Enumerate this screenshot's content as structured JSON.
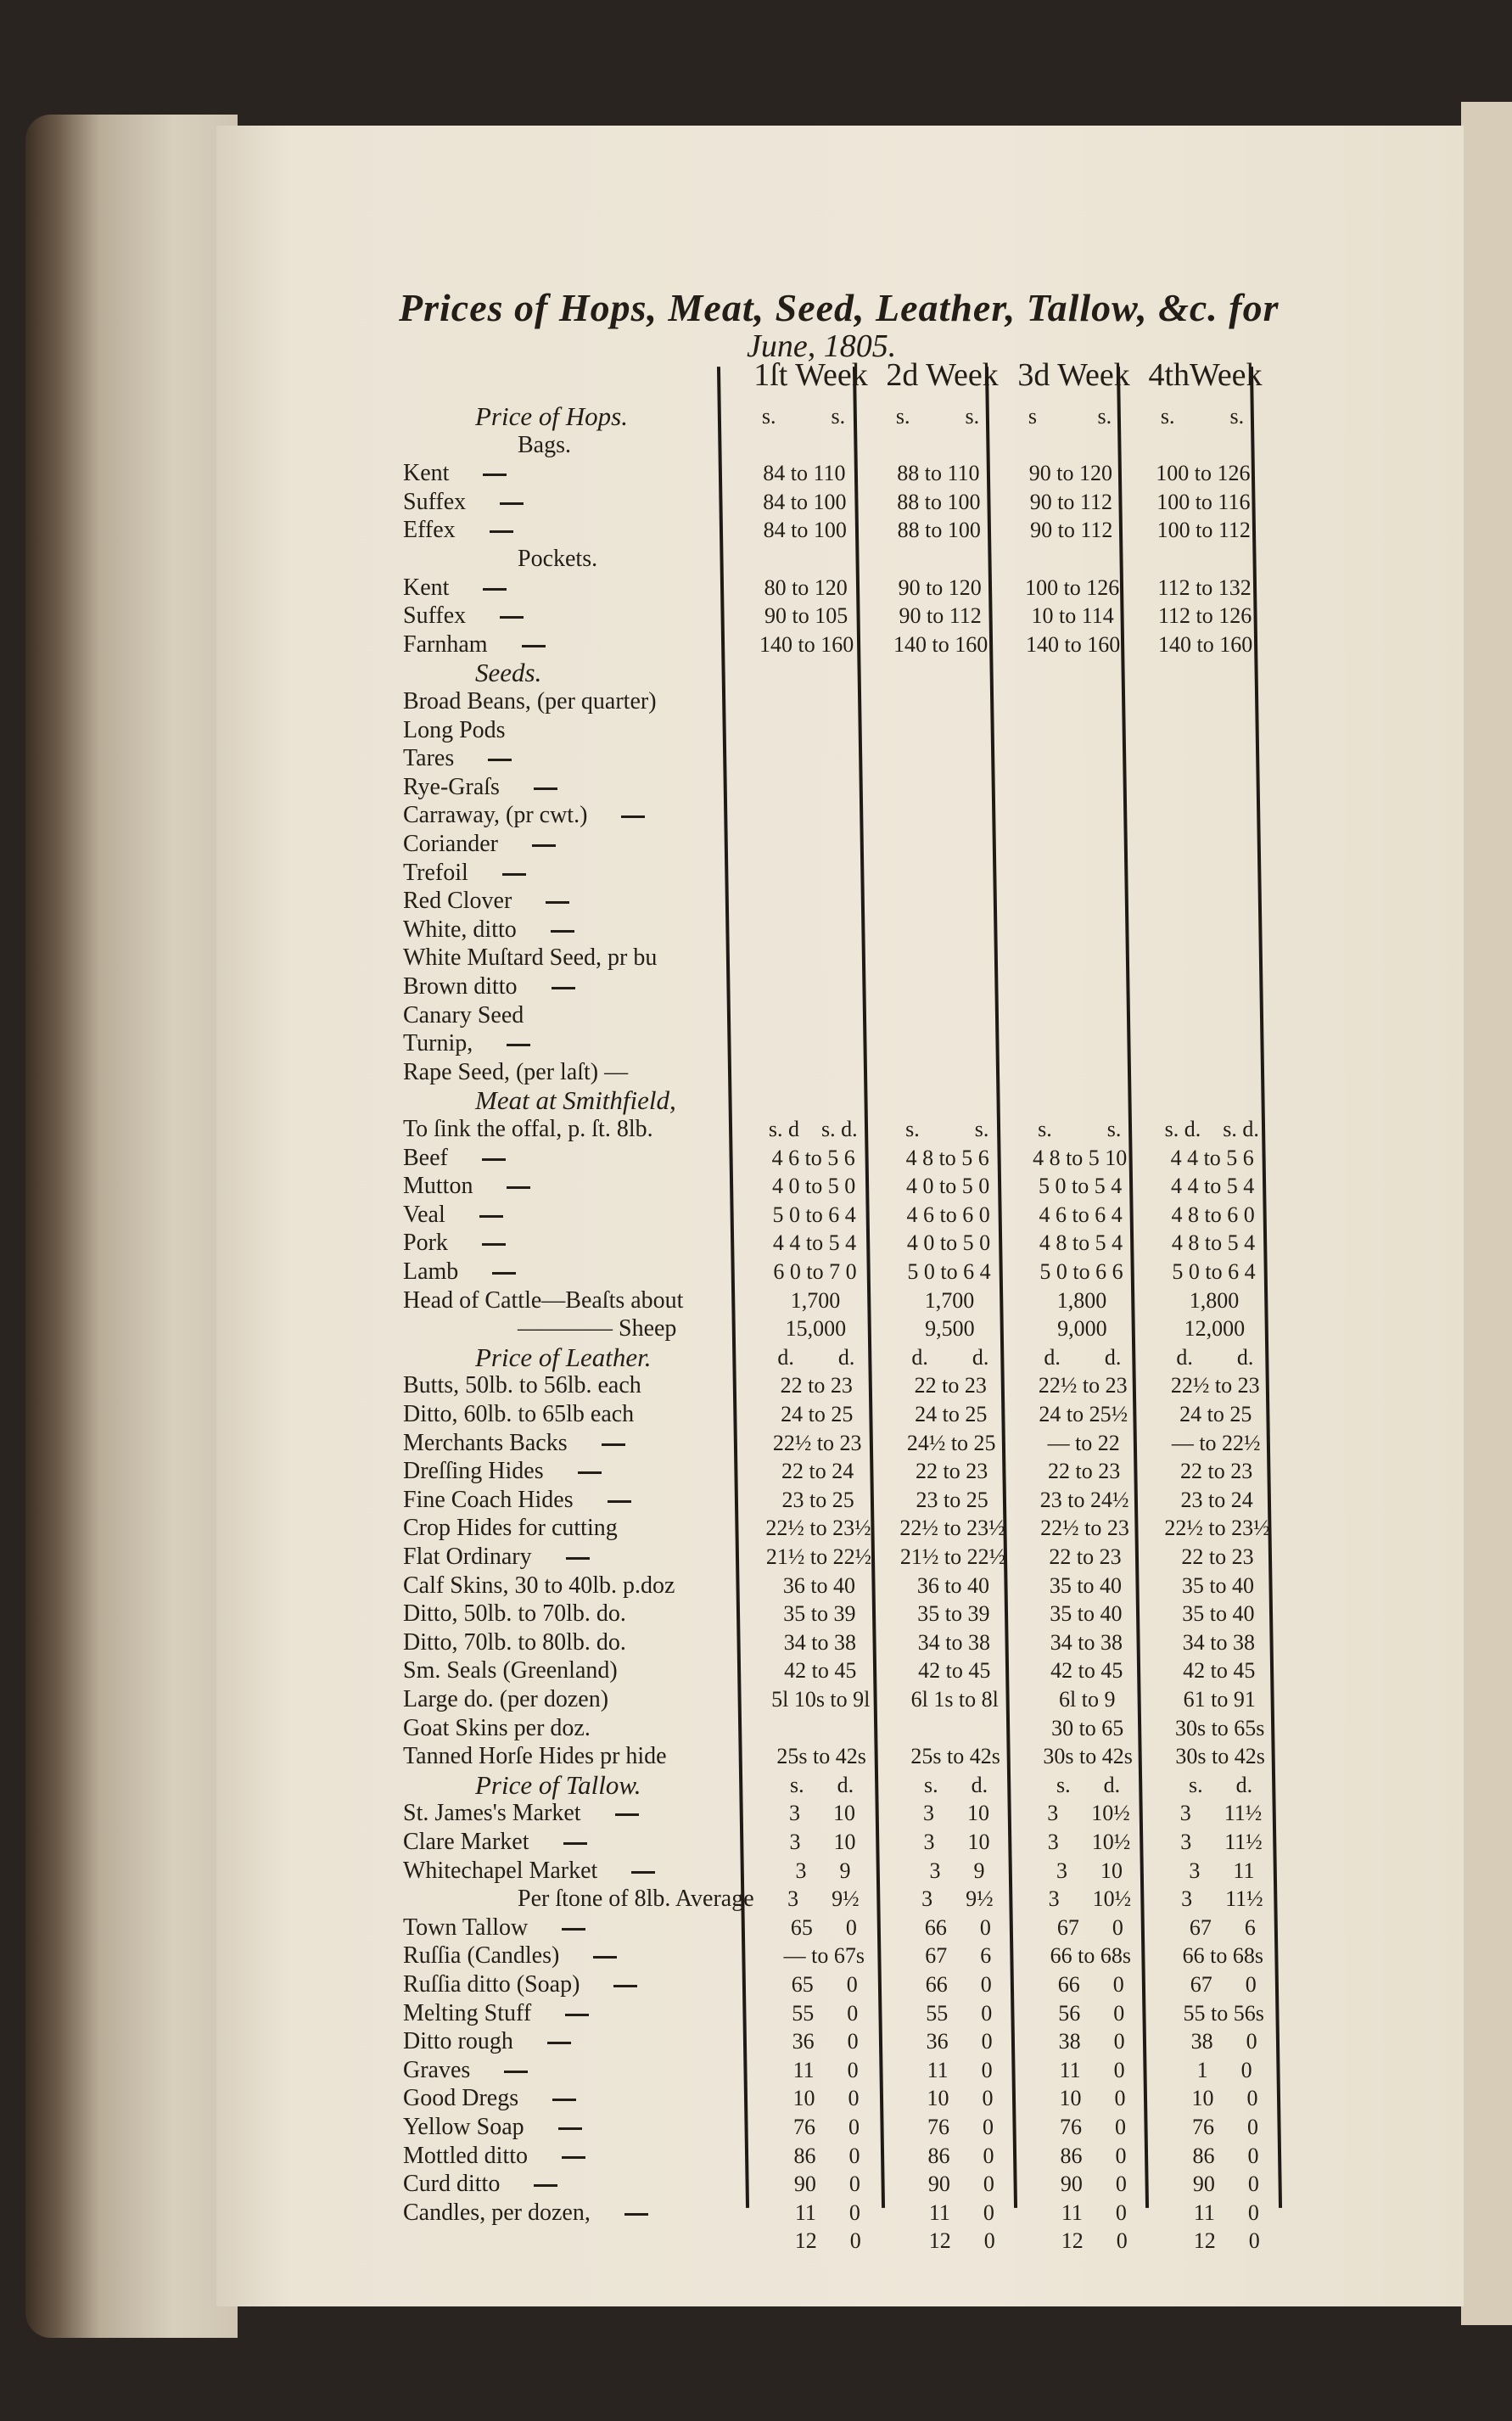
{
  "title": "Prices of Hops, Meat, Seed, Leather, Tallow, &c. for",
  "date": "June, 1805.",
  "weeks": [
    "1ſt Week",
    "2d Week",
    "3d Week",
    "4thWeek"
  ],
  "rows": [
    {
      "label": "Price of Hops.",
      "type": "heading",
      "values": [
        "s.          s.",
        "s.          s.",
        "s           s.",
        "s.          s."
      ]
    },
    {
      "label": "Bags.",
      "type": "sub",
      "values": [
        "",
        "",
        "",
        ""
      ]
    },
    {
      "label": "Kent",
      "dash": true,
      "values": [
        "84 to 110",
        "88 to 110",
        "90 to 120",
        "100 to 126"
      ]
    },
    {
      "label": "Suffex",
      "dash": true,
      "values": [
        "84 to 100",
        "88 to 100",
        "90 to 112",
        "100 to 116"
      ]
    },
    {
      "label": "Effex",
      "dash": true,
      "values": [
        "84 to 100",
        "88 to 100",
        "90 to 112",
        "100 to 112"
      ]
    },
    {
      "label": "Pockets.",
      "type": "sub",
      "values": [
        "",
        "",
        "",
        ""
      ]
    },
    {
      "label": "Kent",
      "dash": true,
      "values": [
        "80 to 120",
        "90 to 120",
        "100 to 126",
        "112 to 132"
      ]
    },
    {
      "label": "Suffex",
      "dash": true,
      "values": [
        "90 to 105",
        "90 to 112",
        "10 to 114",
        "112 to 126"
      ]
    },
    {
      "label": "Farnham",
      "dash": true,
      "values": [
        "140 to 160",
        "140 to 160",
        "140 to 160",
        "140 to 160"
      ]
    },
    {
      "label": "Seeds.",
      "type": "heading",
      "values": [
        "",
        "",
        "",
        ""
      ]
    },
    {
      "label": "Broad Beans, (per quarter)",
      "values": [
        "",
        "",
        "",
        ""
      ]
    },
    {
      "label": "Long Pods",
      "values": [
        "",
        "",
        "",
        ""
      ]
    },
    {
      "label": "Tares",
      "dash": true,
      "values": [
        "",
        "",
        "",
        ""
      ]
    },
    {
      "label": "Rye-Graſs",
      "dash": true,
      "values": [
        "",
        "",
        "",
        ""
      ]
    },
    {
      "label": "Carraway, (pr cwt.)",
      "dash": true,
      "values": [
        "",
        "",
        "",
        ""
      ]
    },
    {
      "label": "Coriander",
      "dash": true,
      "values": [
        "",
        "",
        "",
        ""
      ]
    },
    {
      "label": "Trefoil",
      "dash": true,
      "values": [
        "",
        "",
        "",
        ""
      ]
    },
    {
      "label": "Red Clover",
      "dash": true,
      "values": [
        "",
        "",
        "",
        ""
      ]
    },
    {
      "label": "White, ditto",
      "dash": true,
      "values": [
        "",
        "",
        "",
        ""
      ]
    },
    {
      "label": "White Muſtard Seed, pr bu",
      "values": [
        "",
        "",
        "",
        ""
      ]
    },
    {
      "label": "Brown ditto",
      "dash": true,
      "values": [
        "",
        "",
        "",
        ""
      ]
    },
    {
      "label": "Canary Seed",
      "values": [
        "",
        "",
        "",
        ""
      ]
    },
    {
      "label": "Turnip,",
      "dash": true,
      "values": [
        "",
        "",
        "",
        ""
      ]
    },
    {
      "label": "Rape Seed, (per laſt) —",
      "values": [
        "",
        "",
        "",
        ""
      ]
    },
    {
      "label": "Meat at Smithfield,",
      "type": "heading",
      "values": [
        "",
        "",
        "",
        ""
      ]
    },
    {
      "label": "To ſink the offal, p. ſt. 8lb.",
      "values": [
        "s. d    s. d.",
        "s.          s.",
        "s.          s.",
        "s. d.    s. d."
      ]
    },
    {
      "label": "Beef",
      "dash": true,
      "values": [
        "4 6 to 5 6",
        "4 8 to 5 6",
        "4 8 to 5 10",
        "4 4 to 5 6"
      ]
    },
    {
      "label": "Mutton",
      "dash": true,
      "values": [
        "4 0 to 5 0",
        "4 0 to 5 0",
        "5 0 to 5 4",
        "4 4 to 5 4"
      ]
    },
    {
      "label": "Veal",
      "dash": true,
      "values": [
        "5 0 to 6 4",
        "4 6 to 6 0",
        "4 6 to 6 4",
        "4 8 to 6 0"
      ]
    },
    {
      "label": "Pork",
      "dash": true,
      "values": [
        "4 4 to 5 4",
        "4 0 to 5 0",
        "4 8 to 5 4",
        "4 8 to 5 4"
      ]
    },
    {
      "label": "Lamb",
      "dash": true,
      "values": [
        "6 0 to 7 0",
        "5 0 to 6 4",
        "5 0 to 6 6",
        "5 0 to 6 4"
      ]
    },
    {
      "label": "Head of Cattle—Beaſts about",
      "values": [
        "1,700",
        "1,700",
        "1,800",
        "1,800"
      ]
    },
    {
      "label": "———— Sheep",
      "type": "sub",
      "values": [
        "15,000",
        "9,500",
        "9,000",
        "12,000"
      ]
    },
    {
      "label": "Price of Leather.",
      "type": "heading",
      "values": [
        "d.        d.",
        "d.        d.",
        "d.        d.",
        "d.        d."
      ]
    },
    {
      "label": "Butts, 50lb. to 56lb. each",
      "values": [
        "22 to 23",
        "22 to 23",
        "22½ to 23",
        "22½ to 23"
      ]
    },
    {
      "label": "Ditto, 60lb. to 65lb each",
      "values": [
        "24 to 25",
        "24 to 25",
        "24 to 25½",
        "24 to 25"
      ]
    },
    {
      "label": "Merchants Backs",
      "dash": true,
      "values": [
        "22½ to 23",
        "24½ to 25",
        "— to 22",
        "— to 22½"
      ]
    },
    {
      "label": "Dreſſing Hides",
      "dash": true,
      "values": [
        "22 to 24",
        "22 to 23",
        "22 to 23",
        "22 to 23"
      ]
    },
    {
      "label": "Fine Coach Hides",
      "dash": true,
      "values": [
        "23 to 25",
        "23 to 25",
        "23 to 24½",
        "23 to 24"
      ]
    },
    {
      "label": "Crop Hides for cutting",
      "values": [
        "22½ to 23½",
        "22½ to 23½",
        "22½ to 23",
        "22½ to 23½"
      ]
    },
    {
      "label": "Flat Ordinary",
      "dash": true,
      "values": [
        "21½ to 22½",
        "21½ to 22½",
        "22 to 23",
        "22 to 23"
      ]
    },
    {
      "label": "Calf Skins, 30 to 40lb. p.doz",
      "values": [
        "36 to 40",
        "36 to 40",
        "35 to 40",
        "35 to 40"
      ]
    },
    {
      "label": "Ditto,      50lb. to 70lb. do.",
      "values": [
        "35 to 39",
        "35 to 39",
        "35 to 40",
        "35 to 40"
      ]
    },
    {
      "label": "Ditto,      70lb. to 80lb. do.",
      "values": [
        "34 to 38",
        "34 to 38",
        "34 to 38",
        "34 to 38"
      ]
    },
    {
      "label": "Sm. Seals (Greenland)",
      "values": [
        "42 to 45",
        "42 to 45",
        "42 to 45",
        "42 to 45"
      ]
    },
    {
      "label": "Large do. (per dozen)",
      "values": [
        "5l 10s to 9l",
        "6l 1s to 8l",
        "6l to 9",
        "61 to 91"
      ]
    },
    {
      "label": "Goat Skins     per doz.",
      "values": [
        "",
        "",
        "30 to 65",
        "30s to 65s"
      ]
    },
    {
      "label": "Tanned Horſe Hides pr hide",
      "values": [
        "25s to 42s",
        "25s to 42s",
        "30s to 42s",
        "30s to 42s"
      ]
    },
    {
      "label": "Price of Tallow.",
      "type": "heading",
      "values": [
        "s.      d.",
        "s.      d.",
        "s.      d.",
        "s.      d."
      ]
    },
    {
      "label": "St. James's Market",
      "dash": true,
      "values": [
        "3      10",
        "3      10",
        "3      10½",
        "3      11½"
      ]
    },
    {
      "label": "Clare Market",
      "dash": true,
      "values": [
        "3      10",
        "3      10",
        "3      10½",
        "3      11½"
      ]
    },
    {
      "label": "Whitechapel Market",
      "dash": true,
      "values": [
        "3      9",
        "3      9",
        "3      10",
        "3      11"
      ]
    },
    {
      "label": "Per ſtone of 8lb. Average",
      "type": "sub",
      "values": [
        "3      9½",
        "3      9½",
        "3      10½",
        "3      11½"
      ]
    },
    {
      "label": "Town Tallow",
      "dash": true,
      "values": [
        "65      0",
        "66      0",
        "67      0",
        "67      6"
      ]
    },
    {
      "label": "Ruſſia (Candles)",
      "dash": true,
      "values": [
        "— to 67s",
        "67      6",
        "66 to 68s",
        "66 to 68s"
      ]
    },
    {
      "label": "Ruſſia ditto (Soap)",
      "dash": true,
      "values": [
        "65      0",
        "66      0",
        "66      0",
        "67      0"
      ]
    },
    {
      "label": "Melting Stuff",
      "dash": true,
      "values": [
        "55      0",
        "55      0",
        "56      0",
        "55 to 56s"
      ]
    },
    {
      "label": "Ditto rough",
      "dash": true,
      "values": [
        "36      0",
        "36      0",
        "38      0",
        "38      0"
      ]
    },
    {
      "label": "Graves",
      "dash": true,
      "values": [
        "11      0",
        "11      0",
        "11      0",
        "1      0"
      ]
    },
    {
      "label": "Good Dregs",
      "dash": true,
      "values": [
        "10      0",
        "10      0",
        "10      0",
        "10      0"
      ]
    },
    {
      "label": "Yellow Soap",
      "dash": true,
      "values": [
        "76      0",
        "76      0",
        "76      0",
        "76      0"
      ]
    },
    {
      "label": "Mottled ditto",
      "dash": true,
      "values": [
        "86      0",
        "86      0",
        "86      0",
        "86      0"
      ]
    },
    {
      "label": "Curd ditto",
      "dash": true,
      "values": [
        "90      0",
        "90      0",
        "90      0",
        "90      0"
      ]
    },
    {
      "label": "Candles, per dozen,",
      "dash": true,
      "values": [
        "11      0",
        "11      0",
        "11      0",
        "11      0"
      ]
    },
    {
      "label": "",
      "values": [
        "12      0",
        "12      0",
        "12      0",
        "12      0"
      ]
    }
  ]
}
